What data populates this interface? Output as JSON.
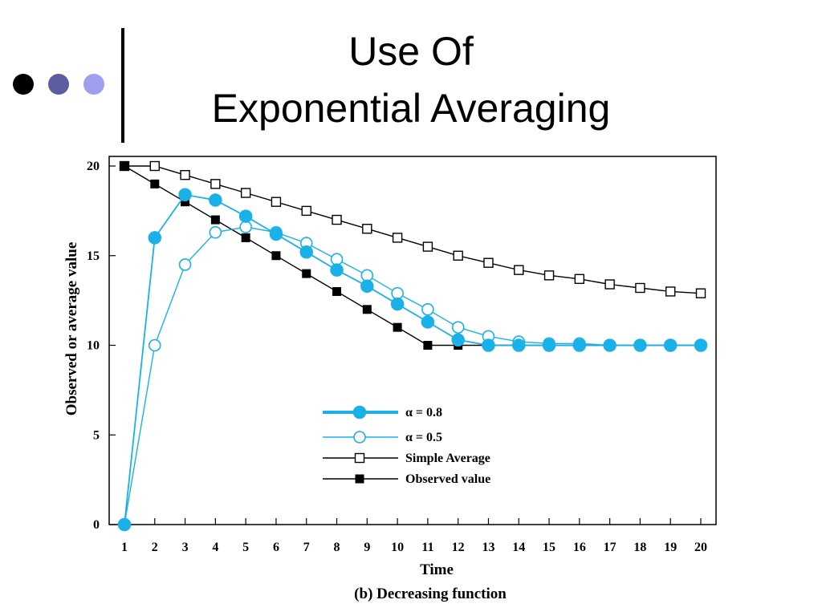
{
  "slide": {
    "title_line1": "Use Of",
    "title_line2": "Exponential Averaging"
  },
  "colors": {
    "cyan": "#1ab0e8",
    "black": "#000000"
  },
  "chart_data": {
    "type": "line",
    "caption": "(b) Decreasing function",
    "xlabel": "Time",
    "ylabel": "Observed or average value",
    "xlim": [
      1,
      20
    ],
    "ylim": [
      0,
      20
    ],
    "x": [
      1,
      2,
      3,
      4,
      5,
      6,
      7,
      8,
      9,
      10,
      11,
      12,
      13,
      14,
      15,
      16,
      17,
      18,
      19,
      20
    ],
    "x_ticks": [
      "1",
      "2",
      "3",
      "4",
      "5",
      "6",
      "7",
      "8",
      "9",
      "10",
      "11",
      "12",
      "13",
      "14",
      "15",
      "16",
      "17",
      "18",
      "19",
      "20"
    ],
    "y_ticks": [
      "0",
      "5",
      "10",
      "15",
      "20"
    ],
    "legend_position": "center",
    "series": [
      {
        "name": "α = 0.8",
        "color": "#1ab0e8",
        "marker": "filled-circle",
        "values": [
          0,
          16,
          18.4,
          18.1,
          17.2,
          16.2,
          15.2,
          14.2,
          13.3,
          12.3,
          11.3,
          10.3,
          10,
          10,
          10,
          10,
          10,
          10,
          10,
          10
        ]
      },
      {
        "name": "α = 0.5",
        "color": "#1ab0e8",
        "marker": "open-circle",
        "values": [
          0,
          10,
          14.5,
          16.3,
          16.6,
          16.3,
          15.7,
          14.8,
          13.9,
          12.9,
          12,
          11,
          10.5,
          10.2,
          10.1,
          10.1,
          10,
          10,
          10,
          10
        ]
      },
      {
        "name": "Simple Average",
        "color": "#000000",
        "marker": "open-square",
        "values": [
          20,
          20,
          19.5,
          19,
          18.5,
          18,
          17.5,
          17,
          16.5,
          16,
          15.5,
          15,
          14.6,
          14.2,
          13.9,
          13.7,
          13.4,
          13.2,
          13,
          12.9
        ]
      },
      {
        "name": "Observed value",
        "color": "#000000",
        "marker": "filled-square",
        "values": [
          20,
          19,
          18,
          17,
          16,
          15,
          14,
          13,
          12,
          11,
          10,
          10,
          10,
          10,
          10,
          10,
          10,
          10,
          10,
          10
        ]
      }
    ]
  }
}
